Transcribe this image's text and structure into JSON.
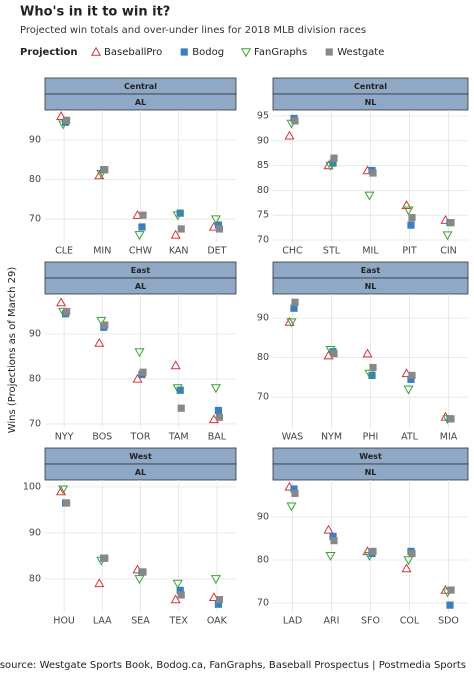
{
  "header": {
    "title": "Who's in it to win it?",
    "subtitle": "Projected win totals and over-under lines for 2018 MLB division races"
  },
  "legend": {
    "title": "Projection"
  },
  "y_label": "Wins (Projections as of March 29)",
  "caption": "Data source: Westgate Sports Book, Bodog.ca, FanGraphs, Baseball Prospectus  |  Postmedia Sports",
  "chart_data": [
    {
      "type": "scatter",
      "strips": [
        "Central",
        "AL"
      ],
      "categories": [
        "CLE",
        "MIN",
        "CHW",
        "KAN",
        "DET"
      ],
      "series": [
        {
          "name": "BaseballPro",
          "color": "#d7353b",
          "marker": "triangle-up",
          "values": [
            96,
            81,
            71,
            66,
            68
          ]
        },
        {
          "name": "Bodog",
          "color": "#3a7fc1",
          "marker": "square",
          "values": [
            94.5,
            82.5,
            68,
            71.5,
            68.5
          ]
        },
        {
          "name": "FanGraphs",
          "color": "#3aa13a",
          "marker": "triangle-down",
          "values": [
            94,
            81.5,
            66,
            71,
            70
          ]
        },
        {
          "name": "Westgate",
          "color": "#888888",
          "marker": "square",
          "values": [
            95,
            82.5,
            71,
            67.5,
            67.5
          ]
        }
      ],
      "ylim": [
        64.2,
        97.6
      ],
      "yticks": [
        70,
        80,
        90
      ],
      "grid": true
    },
    {
      "type": "scatter",
      "strips": [
        "Central",
        "NL"
      ],
      "categories": [
        "CHC",
        "STL",
        "MIL",
        "PIT",
        "CIN"
      ],
      "series": [
        {
          "name": "BaseballPro",
          "color": "#d7353b",
          "marker": "triangle-up",
          "values": [
            91,
            85,
            84,
            77,
            74
          ]
        },
        {
          "name": "Bodog",
          "color": "#3a7fc1",
          "marker": "square",
          "values": [
            94.5,
            85.5,
            84,
            73,
            73.5
          ]
        },
        {
          "name": "FanGraphs",
          "color": "#3aa13a",
          "marker": "triangle-down",
          "values": [
            93.5,
            85,
            79,
            76,
            71
          ]
        },
        {
          "name": "Westgate",
          "color": "#888888",
          "marker": "square",
          "values": [
            94,
            86.5,
            83.5,
            74.5,
            73.5
          ]
        }
      ],
      "ylim": [
        69.6,
        96.2
      ],
      "yticks": [
        70,
        75,
        80,
        85,
        90,
        95
      ],
      "grid": true
    },
    {
      "type": "scatter",
      "strips": [
        "East",
        "AL"
      ],
      "categories": [
        "NYY",
        "BOS",
        "TOR",
        "TAM",
        "BAL"
      ],
      "series": [
        {
          "name": "BaseballPro",
          "color": "#d7353b",
          "marker": "triangle-up",
          "values": [
            97,
            88,
            80,
            83,
            71
          ]
        },
        {
          "name": "Bodog",
          "color": "#3a7fc1",
          "marker": "square",
          "values": [
            94.5,
            91.5,
            81,
            77.5,
            73
          ]
        },
        {
          "name": "FanGraphs",
          "color": "#3aa13a",
          "marker": "triangle-down",
          "values": [
            95,
            93,
            86,
            78,
            78
          ]
        },
        {
          "name": "Westgate",
          "color": "#888888",
          "marker": "square",
          "values": [
            95,
            92,
            81.5,
            73.5,
            71.5
          ]
        }
      ],
      "ylim": [
        69.1,
        98.9
      ],
      "yticks": [
        70,
        80,
        90
      ],
      "grid": true
    },
    {
      "type": "scatter",
      "strips": [
        "East",
        "NL"
      ],
      "categories": [
        "WAS",
        "NYM",
        "PHI",
        "ATL",
        "MIA"
      ],
      "series": [
        {
          "name": "BaseballPro",
          "color": "#d7353b",
          "marker": "triangle-up",
          "values": [
            89,
            80.5,
            81,
            76,
            65
          ]
        },
        {
          "name": "Bodog",
          "color": "#3a7fc1",
          "marker": "square",
          "values": [
            92.5,
            81.5,
            75.5,
            74.5,
            64.5
          ]
        },
        {
          "name": "FanGraphs",
          "color": "#3aa13a",
          "marker": "triangle-down",
          "values": [
            89,
            82,
            76,
            72,
            64.5
          ]
        },
        {
          "name": "Westgate",
          "color": "#888888",
          "marker": "square",
          "values": [
            94,
            81,
            77.5,
            75.5,
            64.5
          ]
        }
      ],
      "ylim": [
        62.2,
        96.1
      ],
      "yticks": [
        70,
        80,
        90
      ],
      "grid": true
    },
    {
      "type": "scatter",
      "strips": [
        "West",
        "AL"
      ],
      "categories": [
        "HOU",
        "LAA",
        "SEA",
        "TEX",
        "OAK"
      ],
      "series": [
        {
          "name": "BaseballPro",
          "color": "#d7353b",
          "marker": "triangle-up",
          "values": [
            99,
            79,
            82,
            75.5,
            76
          ]
        },
        {
          "name": "Bodog",
          "color": "#3a7fc1",
          "marker": "square",
          "values": [
            96.5,
            84.5,
            81.5,
            77.5,
            74.5
          ]
        },
        {
          "name": "FanGraphs",
          "color": "#3aa13a",
          "marker": "triangle-down",
          "values": [
            99.5,
            84,
            80,
            79,
            80
          ]
        },
        {
          "name": "Westgate",
          "color": "#888888",
          "marker": "square",
          "values": [
            96.5,
            84.5,
            81.5,
            76.5,
            75.5
          ]
        }
      ],
      "ylim": [
        72.8,
        101.5
      ],
      "yticks": [
        80,
        90,
        100
      ],
      "grid": true
    },
    {
      "type": "scatter",
      "strips": [
        "West",
        "NL"
      ],
      "categories": [
        "LAD",
        "ARI",
        "SFO",
        "COL",
        "SDO"
      ],
      "series": [
        {
          "name": "BaseballPro",
          "color": "#d7353b",
          "marker": "triangle-up",
          "values": [
            97,
            87,
            82,
            78,
            73
          ]
        },
        {
          "name": "Bodog",
          "color": "#3a7fc1",
          "marker": "square",
          "values": [
            96.5,
            85.5,
            81.5,
            82,
            69.5
          ]
        },
        {
          "name": "FanGraphs",
          "color": "#3aa13a",
          "marker": "triangle-down",
          "values": [
            92.5,
            81,
            81,
            80,
            72.5
          ]
        },
        {
          "name": "Westgate",
          "color": "#888888",
          "marker": "square",
          "values": [
            95.5,
            84.5,
            82,
            81.5,
            73
          ]
        }
      ],
      "ylim": [
        67.9,
        98.6
      ],
      "yticks": [
        70,
        80,
        90
      ],
      "grid": true
    }
  ]
}
